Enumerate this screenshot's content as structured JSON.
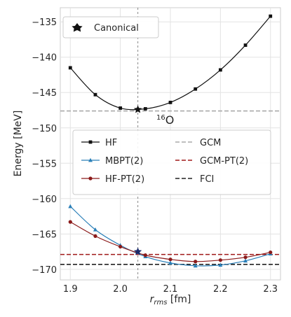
{
  "chart_data": {
    "type": "line",
    "xlabel_main": "r",
    "xlabel_sub": "rms",
    "xlabel_unit": " [fm]",
    "ylabel": "Energy [MeV]",
    "xlim": [
      1.88,
      2.32
    ],
    "ylim": [
      -171.5,
      -133.0
    ],
    "grid": true,
    "xticks": [
      1.9,
      2.0,
      2.1,
      2.2,
      2.3
    ],
    "xtick_labels": [
      "1.9",
      "2.0",
      "2.1",
      "2.2",
      "2.3"
    ],
    "yticks": [
      -135,
      -140,
      -145,
      -150,
      -155,
      -160,
      -165,
      -170
    ],
    "ytick_labels": [
      "−135",
      "−140",
      "−145",
      "−150",
      "−155",
      "−160",
      "−165",
      "−170"
    ],
    "annotation": {
      "mass": "16",
      "element": "O"
    },
    "canonical": {
      "label": "Canonical",
      "x": 2.035,
      "y_hf": -147.4,
      "y_corr": -167.5,
      "vline_x": 2.035
    },
    "series": [
      {
        "name": "HF",
        "color": "#111111",
        "marker": "square",
        "x": [
          1.9,
          1.95,
          2.0,
          2.05,
          2.1,
          2.15,
          2.2,
          2.25,
          2.3
        ],
        "y": [
          -141.5,
          -145.3,
          -147.2,
          -147.3,
          -146.4,
          -144.5,
          -141.8,
          -138.3,
          -134.2
        ]
      },
      {
        "name": "MBPT(2)",
        "color": "#2a7fb8",
        "marker": "triangle",
        "x": [
          1.9,
          1.95,
          2.0,
          2.05,
          2.1,
          2.15,
          2.2,
          2.25,
          2.3
        ],
        "y": [
          -161.1,
          -164.4,
          -166.6,
          -168.2,
          -169.1,
          -169.5,
          -169.4,
          -168.8,
          -167.8
        ]
      },
      {
        "name": "HF-PT(2)",
        "color": "#8b1a1a",
        "marker": "circle",
        "x": [
          1.9,
          1.95,
          2.0,
          2.05,
          2.1,
          2.15,
          2.2,
          2.25,
          2.3
        ],
        "y": [
          -163.3,
          -165.3,
          -166.8,
          -168.0,
          -168.6,
          -168.9,
          -168.7,
          -168.3,
          -167.6
        ]
      }
    ],
    "hlines": [
      {
        "name": "GCM",
        "y": -147.6,
        "color": "#aaaaaa"
      },
      {
        "name": "GCM-PT(2)",
        "y": -167.9,
        "color": "#a01818"
      },
      {
        "name": "FCI",
        "y": -169.3,
        "color": "#222222"
      }
    ],
    "legend_canonical": "top-left",
    "legend_methods": "center"
  }
}
